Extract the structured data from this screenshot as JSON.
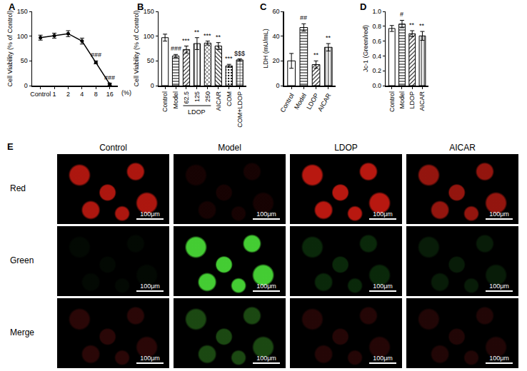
{
  "chart_data": [
    {
      "panel": "A",
      "type": "line",
      "categories": [
        "Control",
        "1",
        "2",
        "4",
        "8",
        "16"
      ],
      "values": [
        97,
        101,
        105,
        90,
        47,
        3
      ],
      "errors": [
        5,
        5,
        6,
        6,
        3,
        2
      ],
      "significance": [
        null,
        null,
        null,
        null,
        "###",
        "###"
      ],
      "x_label": "(%)",
      "ylabel": "Cell Viability (% of Control)",
      "ylim": [
        0,
        150
      ],
      "yticks": [
        0,
        50,
        100,
        150
      ],
      "color": "#000000",
      "marker": "circle",
      "grid": false
    },
    {
      "panel": "B",
      "type": "bar",
      "categories": [
        "Control",
        "Model",
        "62.5",
        "125",
        "250",
        "AICAR",
        "COM",
        "COM+LDOP"
      ],
      "values": [
        97,
        60,
        73,
        85,
        86,
        80,
        40,
        52
      ],
      "errors": [
        7,
        3,
        7,
        12,
        4,
        7,
        3,
        2
      ],
      "significance": [
        null,
        "###",
        "***",
        "**",
        "***",
        "**",
        "***",
        "$$$"
      ],
      "group_labels": [
        {
          "text": "LDOP",
          "from": "62.5",
          "to": "250"
        }
      ],
      "ylabel": "Cell Viability (% of Control)",
      "ylim": [
        0,
        150
      ],
      "yticks": [
        0,
        50,
        100,
        150
      ],
      "color": "#ffffff",
      "grid": false
    },
    {
      "panel": "C",
      "type": "bar",
      "categories": [
        "Control",
        "Model",
        "LDOP",
        "AICAR"
      ],
      "values": [
        20,
        47,
        17,
        31
      ],
      "errors": [
        6,
        3,
        3,
        3
      ],
      "significance": [
        null,
        "##",
        "**",
        "**"
      ],
      "ylabel": "LDH (mU/mL)",
      "ylim": [
        0,
        60
      ],
      "yticks": [
        0,
        20,
        40,
        60
      ],
      "color": "#ffffff",
      "grid": false
    },
    {
      "panel": "D",
      "type": "bar",
      "categories": [
        "Control",
        "Model",
        "LDOP",
        "AICAR"
      ],
      "values": [
        0.77,
        0.83,
        0.7,
        0.67
      ],
      "errors": [
        0.04,
        0.05,
        0.04,
        0.06
      ],
      "significance": [
        null,
        "#",
        "**",
        "**"
      ],
      "ylabel": "Jc-1 (Green/red)",
      "ylim": [
        0,
        1.0
      ],
      "yticks": [
        {
          "value": 0,
          "label": "0.0"
        },
        {
          "value": 0.2,
          "label": "0.2"
        },
        {
          "value": 0.4,
          "label": "0.4"
        },
        {
          "value": 0.6,
          "label": "0.6"
        },
        {
          "value": 0.8,
          "label": "0.8"
        },
        {
          "value": 1.0,
          "label": "1.0"
        }
      ],
      "color": "#ffffff",
      "grid": false
    }
  ],
  "image_panel": {
    "panel": "E",
    "columns": [
      "Control",
      "Model",
      "LDOP",
      "AICAR"
    ],
    "rows": [
      "Red",
      "Green",
      "Merge"
    ],
    "scale_bar": "100μm"
  }
}
